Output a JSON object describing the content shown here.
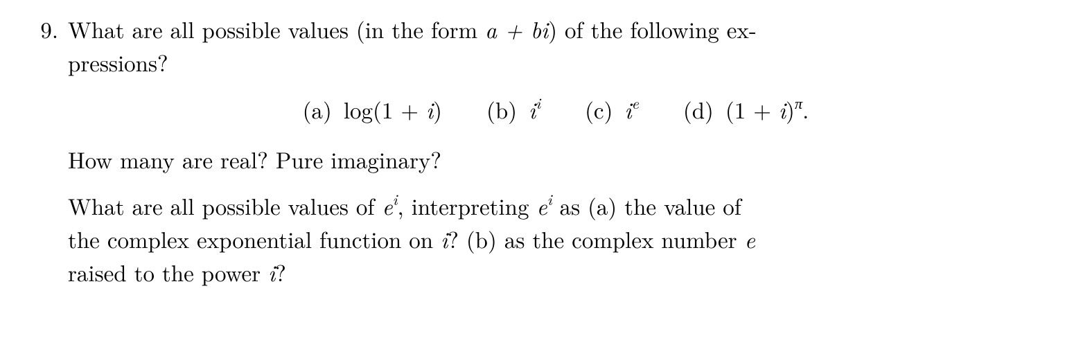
{
  "problem": {
    "number": "9.",
    "intro_line1": "What are all possible values (in the form ",
    "intro_formula": "a + bi",
    "intro_line1_end": ") of the following ex-",
    "intro_line2": "pressions?",
    "options": {
      "a": {
        "label": "(a)",
        "expr_prefix": "log(1 + ",
        "expr_var": "i",
        "expr_suffix": ")"
      },
      "b": {
        "label": "(b)",
        "base": "i",
        "exp": "i"
      },
      "c": {
        "label": "(c)",
        "base": "i",
        "exp": "e"
      },
      "d": {
        "label": "(d)",
        "prefix": "(1 + ",
        "var": "i",
        "mid": ")",
        "exp": "π",
        "suffix": "."
      }
    },
    "q2": "How many are real?  Pure imaginary?",
    "q3_line1_pre": "What are all possible values of ",
    "q3_e": "e",
    "q3_i": "i",
    "q3_line1_mid": ", interpreting ",
    "q3_line1_post": " as (a) the value of",
    "q3_line2_pre": "the complex exponential function on ",
    "q3_line2_post": "?  (b) as the complex number ",
    "q3_line3_pre": "raised to the power ",
    "q3_line3_post": "?"
  },
  "style": {
    "background": "#ffffff",
    "text_color": "#000000",
    "font_size_pt": 24
  }
}
